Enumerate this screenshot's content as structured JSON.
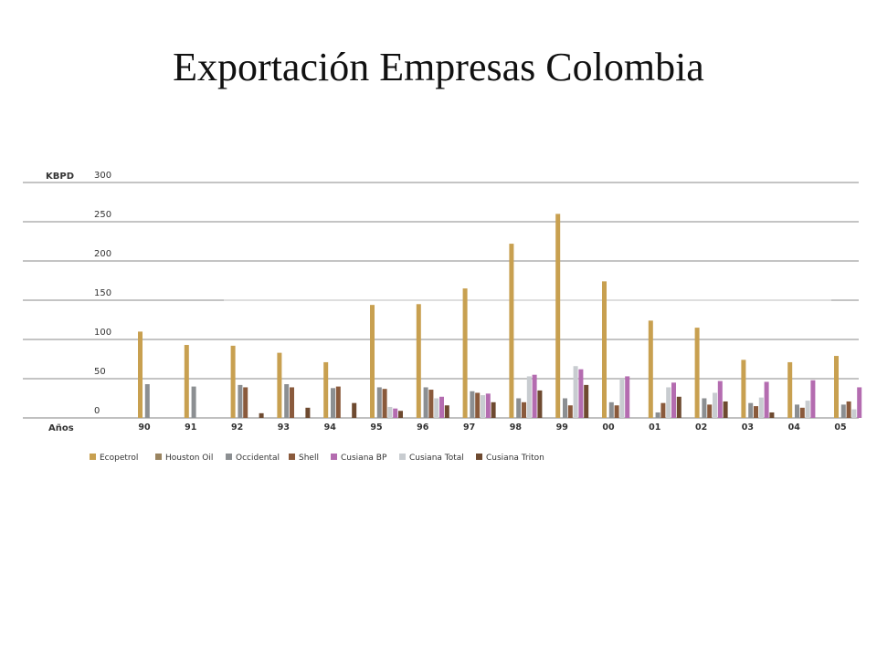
{
  "slide": {
    "title": "Exportación Empresas Colombia"
  },
  "chart_data": {
    "type": "bar",
    "ylabel": "KBPD",
    "xlabel": "Años",
    "ylim": [
      0,
      300
    ],
    "yticks": [
      "300",
      "250",
      "200",
      "150",
      "100",
      "50",
      "0"
    ],
    "categories": [
      "90",
      "91",
      "92",
      "93",
      "94",
      "95",
      "96",
      "97",
      "98",
      "99",
      "00",
      "01",
      "02",
      "03",
      "04",
      "05"
    ],
    "grid": true,
    "legend_position": "bottom",
    "series": [
      {
        "name": "Ecopetrol",
        "color": "#c8a050",
        "values": [
          110,
          93,
          92,
          83,
          71,
          144,
          145,
          165,
          222,
          260,
          174,
          124,
          115,
          74,
          71,
          79
        ]
      },
      {
        "name": "Houston Oil",
        "color": "#9a8460",
        "values": [
          0,
          0,
          0,
          0,
          0,
          0,
          0,
          0,
          0,
          0,
          0,
          0,
          0,
          0,
          0,
          0
        ]
      },
      {
        "name": "Occidental",
        "color": "#8c8f92",
        "values": [
          43,
          40,
          42,
          43,
          38,
          39,
          39,
          34,
          25,
          25,
          20,
          7,
          25,
          19,
          17,
          17
        ]
      },
      {
        "name": "Shell",
        "color": "#8a5a3c",
        "values": [
          0,
          0,
          39,
          39,
          40,
          37,
          36,
          32,
          20,
          16,
          16,
          19,
          17,
          15,
          13,
          21
        ]
      },
      {
        "name": "Cusiana BP",
        "color": "#b46cb0",
        "values": [
          0,
          0,
          0,
          0,
          0,
          12,
          27,
          31,
          55,
          62,
          53,
          45,
          47,
          46,
          48,
          39
        ]
      },
      {
        "name": "Cusiana Total",
        "color": "#c8ccd0",
        "values": [
          0,
          0,
          0,
          0,
          0,
          14,
          25,
          29,
          53,
          66,
          50,
          39,
          32,
          26,
          22,
          11
        ]
      },
      {
        "name": "Cusiana Triton",
        "color": "#6e4a30",
        "values": [
          0,
          0,
          6,
          13,
          19,
          9,
          16,
          20,
          35,
          42,
          0,
          27,
          21,
          7,
          0,
          0
        ]
      }
    ],
    "note": "Bars per year shown in order: Ecopetrol, Occidental, Shell, Cusiana Total, Cusiana BP, Cusiana Triton (Houston Oil not visibly drawn)."
  }
}
